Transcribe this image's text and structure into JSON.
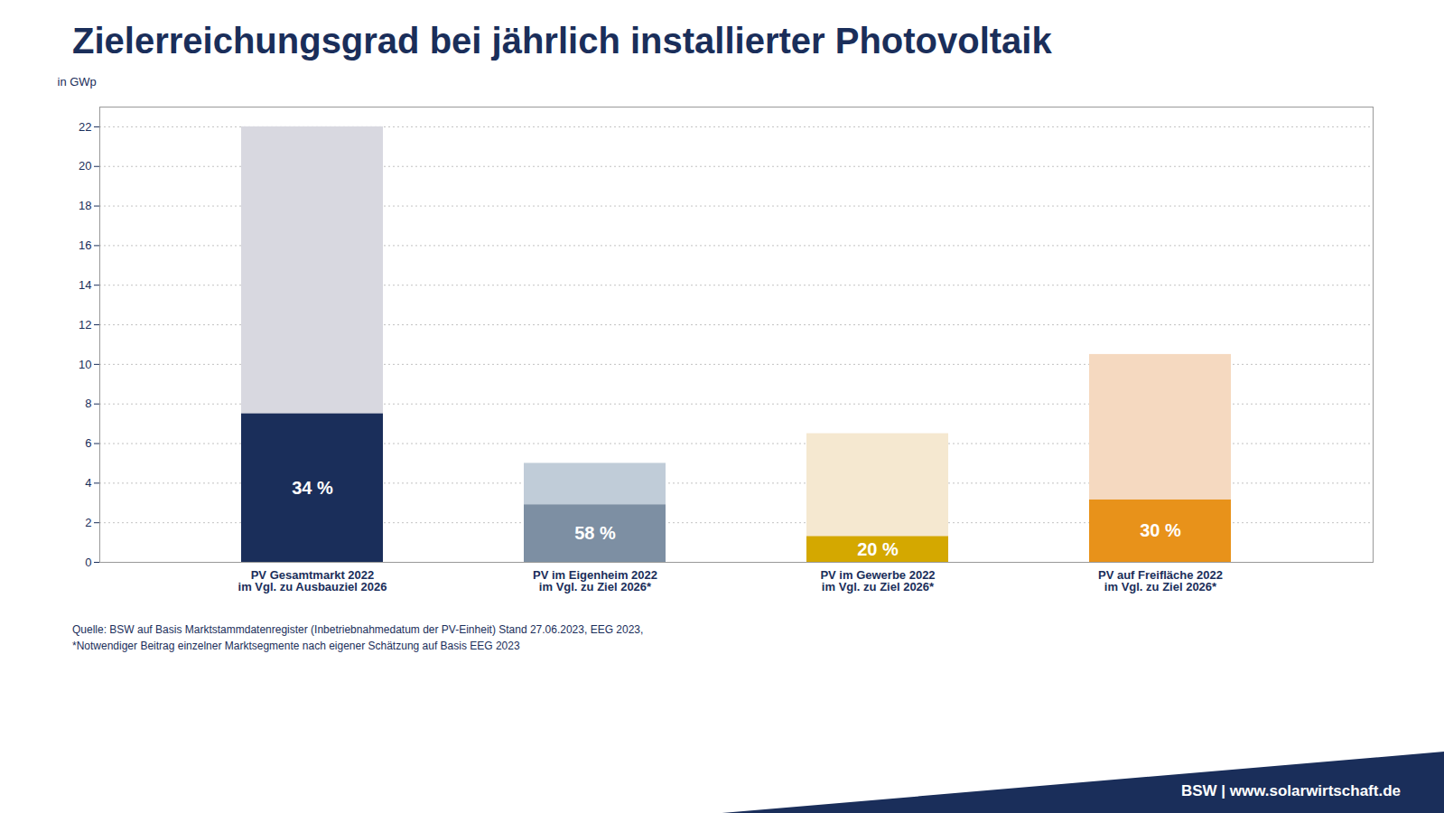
{
  "chart_data": {
    "type": "bar",
    "title": "Zielerreichungsgrad bei jährlich installierter Photovoltaik",
    "ylabel": "in GWp",
    "categories": [
      "PV Gesamtmarkt 2022\nim Vgl. zu Ausbauziel 2026",
      "PV im Eigenheim 2022\nim Vgl. zu Ziel 2026*",
      "PV im Gewerbe 2022\nim Vgl. zu Ziel 2026*",
      "PV auf Freifläche 2022\nim Vgl. zu Ziel 2026*"
    ],
    "series": [
      {
        "values": [
          22.0,
          5.0,
          6.5,
          10.5
        ],
        "colors": [
          "#d8d8e0",
          "#c0ccd8",
          "#f5e8d0",
          "#f5d9c0"
        ]
      },
      {
        "values": [
          7.5,
          2.9,
          1.3,
          3.15
        ],
        "colors": [
          "#1a2e5a",
          "#7d8fa3",
          "#d4a800",
          "#e8921a"
        ],
        "annotations": [
          "34 %",
          "58 %",
          "20 %",
          "30 %"
        ]
      }
    ],
    "ylim": [
      0,
      23
    ],
    "yticks": [
      0,
      2,
      4,
      6,
      8,
      10,
      12,
      14,
      16,
      18,
      20,
      22
    ],
    "grid": true,
    "source": [
      "Quelle: BSW auf Basis Marktstammdatenregister (Inbetriebnahmedatum der PV-Einheit) Stand 27.06.2023, EEG 2023,",
      "*Notwendiger Beitrag einzelner Marktsegmente nach eigener Schätzung auf Basis EEG 2023"
    ],
    "footer": "BSW | www.solarwirtschaft.de",
    "footer_color": "#1a2e5a",
    "color": "#1a2e5a"
  }
}
